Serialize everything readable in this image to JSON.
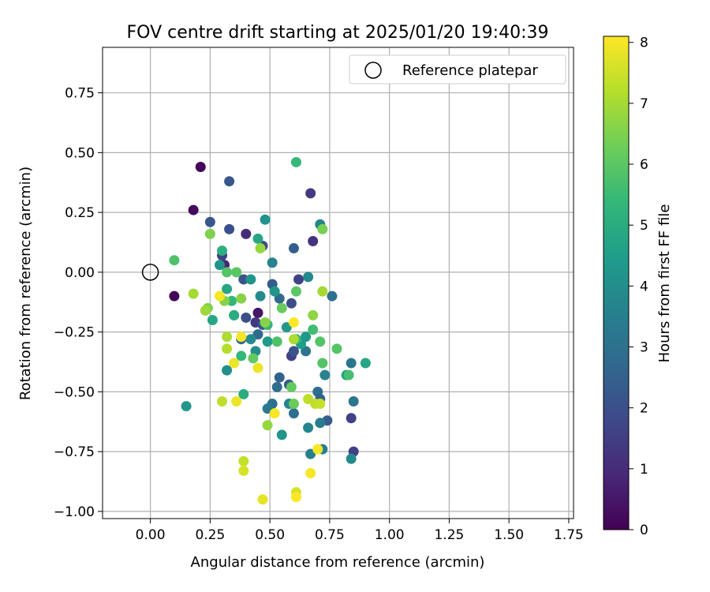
{
  "chart_data": {
    "type": "scatter",
    "title": "FOV centre drift starting at 2025/01/20 19:40:39",
    "xlabel": "Angular distance from reference (arcmin)",
    "ylabel": "Rotation from reference (arcmin)",
    "xlim": [
      -0.2,
      1.77
    ],
    "ylim": [
      -1.03,
      0.94
    ],
    "xticks": [
      "0.00",
      "0.25",
      "0.50",
      "0.75",
      "1.00",
      "1.25",
      "1.50",
      "1.75"
    ],
    "xtick_values": [
      0,
      0.25,
      0.5,
      0.75,
      1.0,
      1.25,
      1.5,
      1.75
    ],
    "yticks": [
      "0.75",
      "0.50",
      "0.25",
      "0.00",
      "−0.25",
      "−0.50",
      "−0.75",
      "−1.00"
    ],
    "ytick_values": [
      0.75,
      0.5,
      0.25,
      0,
      -0.25,
      -0.5,
      -0.75,
      -1.0
    ],
    "grid": true,
    "legend": {
      "position": "top-right",
      "label": "Reference platepar",
      "marker": "open-circle"
    },
    "reference_point": {
      "x": 0.0,
      "y": 0.0
    },
    "colorbar": {
      "label": "Hours from first FF file",
      "range": [
        0,
        8.1
      ],
      "ticks": [
        "0",
        "1",
        "2",
        "3",
        "4",
        "5",
        "6",
        "7",
        "8"
      ],
      "tick_values": [
        0,
        1,
        2,
        3,
        4,
        5,
        6,
        7,
        8
      ],
      "colormap": "viridis",
      "stops": [
        "#440154",
        "#482878",
        "#3e4989",
        "#31688e",
        "#26828e",
        "#1f9e89",
        "#35b779",
        "#6ece58",
        "#b5de2b",
        "#fde725"
      ]
    },
    "points": [
      {
        "x": 0.21,
        "y": 0.44,
        "t": 0.1
      },
      {
        "x": 0.18,
        "y": 0.26,
        "t": 0.2
      },
      {
        "x": 0.1,
        "y": -0.1,
        "t": 0.1
      },
      {
        "x": 0.33,
        "y": 0.38,
        "t": 2.2
      },
      {
        "x": 0.67,
        "y": 0.33,
        "t": 1.4
      },
      {
        "x": 0.25,
        "y": 0.21,
        "t": 2.2
      },
      {
        "x": 0.33,
        "y": 0.18,
        "t": 2.0
      },
      {
        "x": 0.4,
        "y": 0.16,
        "t": 1.0
      },
      {
        "x": 0.47,
        "y": 0.11,
        "t": 1.9
      },
      {
        "x": 0.71,
        "y": 0.2,
        "t": 3.7
      },
      {
        "x": 0.68,
        "y": 0.13,
        "t": 1.2
      },
      {
        "x": 0.3,
        "y": 0.07,
        "t": 1.6
      },
      {
        "x": 0.31,
        "y": 0.03,
        "t": 0.8
      },
      {
        "x": 0.6,
        "y": 0.1,
        "t": 2.4
      },
      {
        "x": 0.39,
        "y": -0.03,
        "t": 2.1
      },
      {
        "x": 0.62,
        "y": -0.03,
        "t": 1.6
      },
      {
        "x": 0.51,
        "y": -0.05,
        "t": 2.4
      },
      {
        "x": 0.54,
        "y": -0.11,
        "t": 2.8
      },
      {
        "x": 0.59,
        "y": -0.13,
        "t": 1.9
      },
      {
        "x": 0.45,
        "y": -0.17,
        "t": 0.5
      },
      {
        "x": 0.44,
        "y": -0.21,
        "t": 1.4
      },
      {
        "x": 0.4,
        "y": -0.19,
        "t": 2.0
      },
      {
        "x": 0.76,
        "y": -0.1,
        "t": 3.0
      },
      {
        "x": 0.35,
        "y": -0.18,
        "t": 3.0
      },
      {
        "x": 0.38,
        "y": -0.28,
        "t": 2.7
      },
      {
        "x": 0.45,
        "y": -0.26,
        "t": 2.8
      },
      {
        "x": 0.59,
        "y": -0.35,
        "t": 1.6
      },
      {
        "x": 0.6,
        "y": -0.33,
        "t": 2.1
      },
      {
        "x": 0.65,
        "y": -0.33,
        "t": 3.2
      },
      {
        "x": 0.47,
        "y": -0.22,
        "t": 2.2
      },
      {
        "x": 0.54,
        "y": -0.44,
        "t": 2.5
      },
      {
        "x": 0.58,
        "y": -0.47,
        "t": 2.3
      },
      {
        "x": 0.53,
        "y": -0.48,
        "t": 2.9
      },
      {
        "x": 0.7,
        "y": -0.5,
        "t": 2.9
      },
      {
        "x": 0.71,
        "y": -0.53,
        "t": 2.5
      },
      {
        "x": 0.6,
        "y": -0.59,
        "t": 3.0
      },
      {
        "x": 0.74,
        "y": -0.62,
        "t": 2.4
      },
      {
        "x": 0.84,
        "y": -0.61,
        "t": 1.6
      },
      {
        "x": 0.85,
        "y": -0.75,
        "t": 1.6
      },
      {
        "x": 0.66,
        "y": -0.65,
        "t": 3.7
      },
      {
        "x": 0.71,
        "y": -0.63,
        "t": 3.4
      },
      {
        "x": 0.72,
        "y": -0.74,
        "t": 3.5
      },
      {
        "x": 0.67,
        "y": -0.76,
        "t": 3.5
      },
      {
        "x": 0.84,
        "y": -0.78,
        "t": 3.9
      },
      {
        "x": 0.85,
        "y": -0.54,
        "t": 3.2
      },
      {
        "x": 0.73,
        "y": -0.43,
        "t": 3.6
      },
      {
        "x": 0.84,
        "y": -0.38,
        "t": 3.2
      },
      {
        "x": 0.51,
        "y": -0.55,
        "t": 3.0
      },
      {
        "x": 0.49,
        "y": -0.57,
        "t": 3.3
      },
      {
        "x": 0.58,
        "y": -0.55,
        "t": 3.7
      },
      {
        "x": 0.55,
        "y": -0.68,
        "t": 4.2
      },
      {
        "x": 0.15,
        "y": -0.56,
        "t": 4.3
      },
      {
        "x": 0.32,
        "y": -0.41,
        "t": 4.0
      },
      {
        "x": 0.51,
        "y": 0.04,
        "t": 3.6
      },
      {
        "x": 0.48,
        "y": 0.22,
        "t": 4.1
      },
      {
        "x": 0.29,
        "y": 0.03,
        "t": 4.2
      },
      {
        "x": 0.42,
        "y": -0.03,
        "t": 4.2
      },
      {
        "x": 0.46,
        "y": -0.1,
        "t": 3.9
      },
      {
        "x": 0.52,
        "y": -0.08,
        "t": 4.2
      },
      {
        "x": 0.66,
        "y": -0.02,
        "t": 3.8
      },
      {
        "x": 0.57,
        "y": -0.23,
        "t": 4.3
      },
      {
        "x": 0.63,
        "y": -0.3,
        "t": 4.5
      },
      {
        "x": 0.65,
        "y": -0.27,
        "t": 4.3
      },
      {
        "x": 0.42,
        "y": -0.28,
        "t": 3.9
      },
      {
        "x": 0.44,
        "y": -0.33,
        "t": 4.0
      },
      {
        "x": 0.49,
        "y": -0.29,
        "t": 4.4
      },
      {
        "x": 0.82,
        "y": -0.43,
        "t": 4.6
      },
      {
        "x": 0.9,
        "y": -0.38,
        "t": 4.8
      },
      {
        "x": 0.26,
        "y": -0.2,
        "t": 4.8
      },
      {
        "x": 0.32,
        "y": -0.07,
        "t": 4.8
      },
      {
        "x": 0.45,
        "y": 0.14,
        "t": 4.8
      },
      {
        "x": 0.3,
        "y": 0.09,
        "t": 5.1
      },
      {
        "x": 0.61,
        "y": 0.46,
        "t": 5.4
      },
      {
        "x": 0.35,
        "y": -0.18,
        "t": 5.0
      },
      {
        "x": 0.39,
        "y": -0.51,
        "t": 5.0
      },
      {
        "x": 0.34,
        "y": -0.12,
        "t": 5.4
      },
      {
        "x": 0.38,
        "y": -0.35,
        "t": 5.4
      },
      {
        "x": 0.49,
        "y": -0.22,
        "t": 5.3
      },
      {
        "x": 0.53,
        "y": -0.29,
        "t": 5.8
      },
      {
        "x": 0.61,
        "y": -0.28,
        "t": 5.4
      },
      {
        "x": 0.68,
        "y": -0.24,
        "t": 5.6
      },
      {
        "x": 0.71,
        "y": -0.29,
        "t": 5.9
      },
      {
        "x": 0.72,
        "y": -0.38,
        "t": 5.9
      },
      {
        "x": 0.78,
        "y": -0.32,
        "t": 5.9
      },
      {
        "x": 0.83,
        "y": -0.43,
        "t": 5.7
      },
      {
        "x": 0.1,
        "y": 0.05,
        "t": 5.8
      },
      {
        "x": 0.32,
        "y": 0.0,
        "t": 5.9
      },
      {
        "x": 0.36,
        "y": 0.0,
        "t": 6.0
      },
      {
        "x": 0.61,
        "y": -0.08,
        "t": 6.0
      },
      {
        "x": 0.55,
        "y": -0.15,
        "t": 6.2
      },
      {
        "x": 0.43,
        "y": -0.36,
        "t": 6.1
      },
      {
        "x": 0.59,
        "y": -0.48,
        "t": 6.1
      },
      {
        "x": 0.6,
        "y": -0.55,
        "t": 6.2
      },
      {
        "x": 0.25,
        "y": 0.16,
        "t": 6.5
      },
      {
        "x": 0.24,
        "y": -0.15,
        "t": 6.5
      },
      {
        "x": 0.31,
        "y": -0.12,
        "t": 6.6
      },
      {
        "x": 0.38,
        "y": -0.11,
        "t": 6.6
      },
      {
        "x": 0.48,
        "y": -0.21,
        "t": 6.6
      },
      {
        "x": 0.68,
        "y": -0.18,
        "t": 6.7
      },
      {
        "x": 0.72,
        "y": 0.18,
        "t": 6.4
      },
      {
        "x": 0.46,
        "y": 0.1,
        "t": 6.8
      },
      {
        "x": 0.23,
        "y": -0.16,
        "t": 6.9
      },
      {
        "x": 0.18,
        "y": -0.09,
        "t": 7.0
      },
      {
        "x": 0.49,
        "y": -0.64,
        "t": 6.8
      },
      {
        "x": 0.72,
        "y": -0.08,
        "t": 7.0
      },
      {
        "x": 0.6,
        "y": -0.28,
        "t": 7.1
      },
      {
        "x": 0.32,
        "y": -0.27,
        "t": 7.1
      },
      {
        "x": 0.32,
        "y": -0.32,
        "t": 7.2
      },
      {
        "x": 0.3,
        "y": -0.54,
        "t": 7.3
      },
      {
        "x": 0.66,
        "y": -0.53,
        "t": 7.3
      },
      {
        "x": 0.69,
        "y": -0.55,
        "t": 7.3
      },
      {
        "x": 0.71,
        "y": -0.55,
        "t": 7.4
      },
      {
        "x": 0.39,
        "y": -0.79,
        "t": 7.4
      },
      {
        "x": 0.39,
        "y": -0.83,
        "t": 7.6
      },
      {
        "x": 0.61,
        "y": -0.92,
        "t": 7.6
      },
      {
        "x": 0.47,
        "y": -0.95,
        "t": 7.8
      },
      {
        "x": 0.45,
        "y": -0.4,
        "t": 7.9
      },
      {
        "x": 0.35,
        "y": -0.38,
        "t": 7.9
      },
      {
        "x": 0.36,
        "y": -0.54,
        "t": 7.9
      },
      {
        "x": 0.52,
        "y": -0.59,
        "t": 8.0
      },
      {
        "x": 0.29,
        "y": -0.1,
        "t": 8.0
      },
      {
        "x": 0.38,
        "y": -0.27,
        "t": 8.0
      },
      {
        "x": 0.6,
        "y": -0.21,
        "t": 8.1
      },
      {
        "x": 0.67,
        "y": -0.84,
        "t": 8.0
      },
      {
        "x": 0.7,
        "y": -0.74,
        "t": 8.0
      },
      {
        "x": 0.61,
        "y": -0.94,
        "t": 8.1
      }
    ]
  }
}
